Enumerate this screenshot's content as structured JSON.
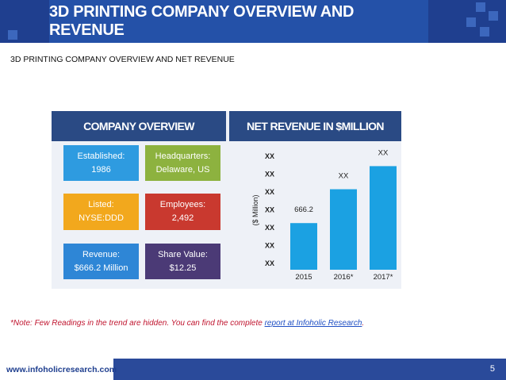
{
  "header": {
    "title": "3D PRINTING COMPANY OVERVIEW AND REVENUE"
  },
  "subtitle": "3D PRINTING COMPANY OVERVIEW AND NET REVENUE",
  "overview": {
    "heading": "COMPANY OVERVIEW",
    "tiles": [
      {
        "label": "Established:",
        "value": "1986",
        "color": "#2e9be0"
      },
      {
        "label": "Headquarters:",
        "value": "Delaware, US",
        "color": "#8db23f"
      },
      {
        "label": "Listed:",
        "value": "NYSE:DDD",
        "color": "#f2a81d"
      },
      {
        "label": "Employees:",
        "value": "2,492",
        "color": "#c9392f"
      },
      {
        "label": "Revenue:",
        "value": "$666.2 Million",
        "color": "#2e86d6"
      },
      {
        "label": "Share Value:",
        "value": "$12.25",
        "color": "#4b3a76"
      }
    ]
  },
  "revenue": {
    "heading": "NET REVENUE IN $MILLION"
  },
  "chart_data": {
    "type": "bar",
    "categories": [
      "2015",
      "2016*",
      "2017*"
    ],
    "values": [
      666.2,
      1150,
      1480
    ],
    "data_labels": [
      "666.2",
      "XX",
      "XX"
    ],
    "ylabel": "($ Million)",
    "y_tick_labels": [
      "XX",
      "XX",
      "XX",
      "XX",
      "XX",
      "XX",
      "XX"
    ],
    "bar_color": "#1ba1e2",
    "ylim": [
      0,
      1700
    ],
    "grid": false,
    "legend": "none"
  },
  "note": {
    "text": "*Note: Few Readings in the trend are hidden. You can find the complete ",
    "link": "report at Infoholic Research",
    "end": "."
  },
  "footer": {
    "website": "www.infoholicresearch.com",
    "page_number": "5"
  }
}
